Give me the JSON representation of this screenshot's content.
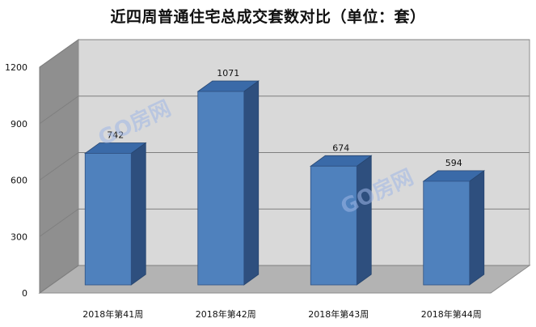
{
  "chart_data": {
    "type": "bar",
    "title": "近四周普通住宅总成交套数对比（单位：套）",
    "categories": [
      "2018年第41周",
      "2018年第42周",
      "2018年第43周",
      "2018年第44周"
    ],
    "values": [
      742,
      1071,
      674,
      594
    ],
    "ylim": [
      0,
      1200
    ],
    "yticks": [
      0,
      300,
      600,
      900,
      1200
    ],
    "grid": true,
    "legend": "none",
    "bar_color": "#4f81bd",
    "bar_side_color": "#2e4f7e",
    "bar_top_color": "#3a6aa8"
  },
  "watermark": "GO房网"
}
